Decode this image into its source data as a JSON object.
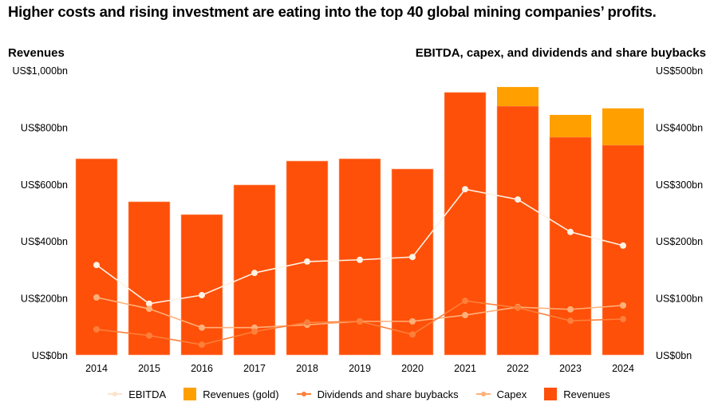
{
  "title": "Higher costs and rising investment are eating into the top 40 global mining companies’ profits.",
  "chart_data": {
    "type": "bar",
    "left_axis": {
      "title": "Revenues",
      "ylim": [
        0,
        1000
      ],
      "ticks": [
        "US$0bn",
        "US$200bn",
        "US$400bn",
        "US$600bn",
        "US$800bn",
        "US$1,000bn"
      ]
    },
    "right_axis": {
      "title": "EBITDA, capex, and dividends and share buybacks",
      "ylim": [
        0,
        500
      ],
      "ticks": [
        "US$0bn",
        "US$100bn",
        "US$200bn",
        "US$300bn",
        "US$400bn",
        "US$500bn"
      ]
    },
    "categories": [
      "2014",
      "2015",
      "2016",
      "2017",
      "2018",
      "2019",
      "2020",
      "2021",
      "2022",
      "2023",
      "2024"
    ],
    "series": [
      {
        "name": "Revenues",
        "type": "bar",
        "axis": "left",
        "color": "#fe5009",
        "values": [
          689,
          538,
          493,
          597,
          681,
          689,
          653,
          922,
          874,
          765,
          737
        ]
      },
      {
        "name": "Revenues (gold)",
        "type": "bar-stacked",
        "axis": "left",
        "color": "#ffa000",
        "values": [
          0,
          0,
          0,
          0,
          0,
          0,
          0,
          0,
          67,
          78,
          129
        ]
      },
      {
        "name": "EBITDA",
        "type": "line",
        "axis": "right",
        "color": "#fff1e4",
        "values": [
          158,
          90,
          105,
          144,
          164,
          167,
          172,
          291,
          273,
          216,
          192
        ]
      },
      {
        "name": "Dividends and share buybacks",
        "type": "line",
        "axis": "right",
        "color": "#fd7f3a",
        "values": [
          45,
          34,
          18,
          41,
          57,
          59,
          36,
          95,
          83,
          60,
          63
        ]
      },
      {
        "name": "Capex",
        "type": "line",
        "axis": "right",
        "color": "#ffb07a",
        "values": [
          101,
          81,
          48,
          48,
          53,
          59,
          59,
          70,
          84,
          80,
          87
        ]
      }
    ],
    "legend": [
      "EBITDA",
      "Revenues (gold)",
      "Dividends and share buybacks",
      "Capex",
      "Revenues"
    ],
    "legend_position": "bottom",
    "grid": false
  }
}
